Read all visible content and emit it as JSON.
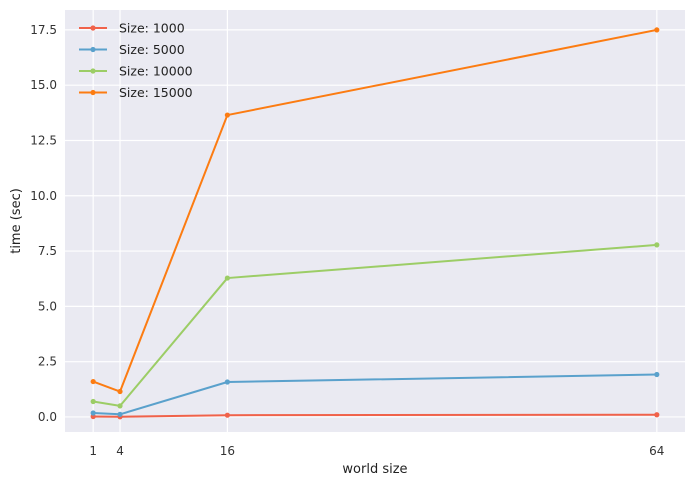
{
  "chart_data": {
    "type": "line",
    "title": "",
    "xlabel": "world size",
    "ylabel": "time (sec)",
    "xticks": [
      1,
      4,
      16,
      64
    ],
    "yticks": [
      "0.0",
      "2.5",
      "5.0",
      "7.5",
      "10.0",
      "12.5",
      "15.0",
      "17.5"
    ],
    "xlim": [
      -2.15,
      67.15
    ],
    "ylim": [
      -0.68,
      18.4
    ],
    "grid": true,
    "legend_position": "top-left",
    "x": [
      1,
      4,
      16,
      64
    ],
    "series": [
      {
        "name": "Size: 1000",
        "color": "#f0624a",
        "values": [
          0.02,
          0.01,
          0.08,
          0.1
        ]
      },
      {
        "name": "Size: 5000",
        "color": "#5aa1cc",
        "values": [
          0.18,
          0.12,
          1.58,
          1.92
        ]
      },
      {
        "name": "Size: 10000",
        "color": "#9ccd66",
        "values": [
          0.7,
          0.5,
          6.28,
          7.78
        ]
      },
      {
        "name": "Size: 15000",
        "color": "#fc7c12",
        "values": [
          1.6,
          1.15,
          13.65,
          17.5
        ]
      }
    ]
  }
}
